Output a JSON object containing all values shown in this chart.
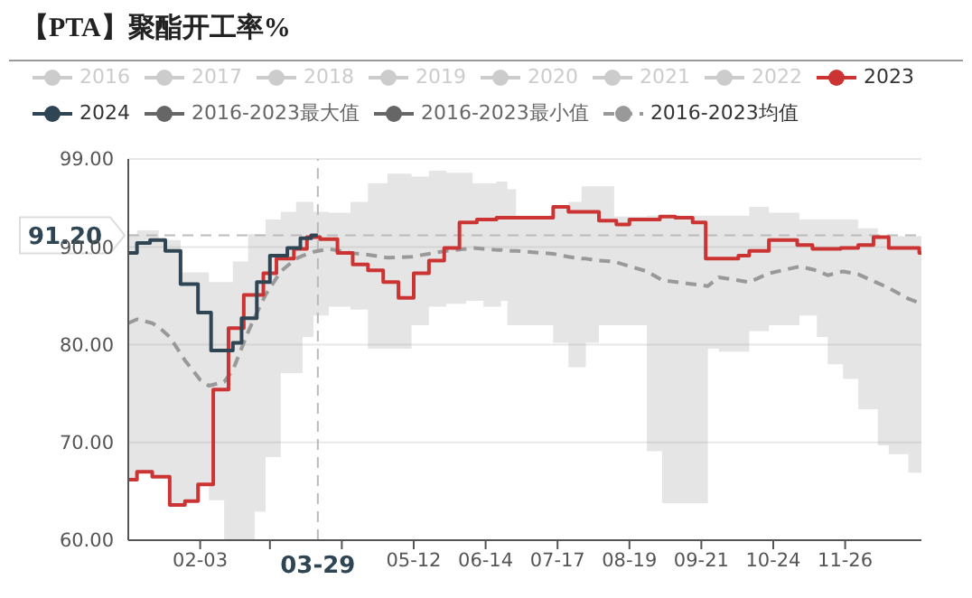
{
  "chart_data": {
    "type": "step",
    "title": "【PTA】聚酯开工率%",
    "xlim": [
      "--01-01",
      "--12-31"
    ],
    "xticks": [
      {
        "value": "--02-03",
        "label": "02-03"
      },
      {
        "value": "--03-07",
        "label": null
      },
      {
        "value": "--04-09",
        "label": null
      },
      {
        "value": "--05-12",
        "label": "05-12"
      },
      {
        "value": "--06-14",
        "label": "06-14"
      },
      {
        "value": "--07-17",
        "label": "07-17"
      },
      {
        "value": "--08-19",
        "label": "08-19"
      },
      {
        "value": "--09-21",
        "label": "09-21"
      },
      {
        "value": "--10-24",
        "label": "10-24"
      },
      {
        "value": "--11-26",
        "label": "11-26"
      }
    ],
    "ylim": [
      60,
      99
    ],
    "yticks": [
      {
        "value": 60,
        "label": "60.00"
      },
      {
        "value": 70,
        "label": "70.00"
      },
      {
        "value": 80,
        "label": "80.00"
      },
      {
        "value": 90,
        "label": "90.00"
      },
      {
        "value": 99,
        "label": "99.00"
      }
    ],
    "grid": "y",
    "legend": "top",
    "marker": "none",
    "ref_lines": [
      {
        "axis": "x",
        "value": "--03-29",
        "label": "03-29",
        "color": "#bbbbbb",
        "line_style": "dashed"
      },
      {
        "axis": "y",
        "value": 91.2,
        "label": "91.20",
        "color": "#bbbbbb",
        "line_style": "dashed"
      }
    ],
    "series": [
      {
        "name": "2016",
        "color": "#cccccc"
      },
      {
        "name": "2017",
        "color": "#cccccc"
      },
      {
        "name": "2018",
        "color": "#cccccc"
      },
      {
        "name": "2019",
        "color": "#cccccc"
      },
      {
        "name": "2020",
        "color": "#cccccc"
      },
      {
        "name": "2021",
        "color": "#cccccc"
      },
      {
        "name": "2022",
        "color": "#cccccc"
      },
      {
        "name": "2023",
        "color": "#cc3333",
        "x": [
          "--01-01",
          "--01-05",
          "--01-12",
          "--01-20",
          "--01-27",
          "--02-02",
          "--02-09",
          "--02-16",
          "--02-23",
          "--03-04",
          "--03-10",
          "--03-18",
          "--03-24",
          "--03-30",
          "--04-07",
          "--04-14",
          "--04-21",
          "--04-28",
          "--05-05",
          "--05-12",
          "--05-19",
          "--05-26",
          "--06-02",
          "--06-10",
          "--06-19",
          "--06-24",
          "--07-15",
          "--07-22",
          "--08-05",
          "--08-13",
          "--08-19",
          "--09-02",
          "--09-09",
          "--09-17",
          "--09-23",
          "--10-08",
          "--10-13",
          "--10-22",
          "--11-04",
          "--11-11",
          "--11-24",
          "--12-02",
          "--12-09",
          "--12-16",
          "--12-30",
          "--12-31"
        ],
        "values": [
          66.2,
          67.0,
          66.5,
          63.6,
          64.0,
          65.7,
          75.4,
          81.7,
          85.1,
          87.3,
          88.8,
          89.8,
          91.0,
          90.8,
          89.4,
          88.2,
          87.6,
          86.4,
          84.8,
          87.3,
          88.6,
          89.9,
          92.5,
          92.8,
          93.0,
          93.0,
          94.1,
          93.6,
          92.7,
          92.3,
          92.8,
          93.1,
          93.0,
          92.5,
          88.8,
          89.1,
          89.6,
          90.7,
          90.2,
          89.8,
          89.9,
          90.2,
          91.0,
          89.9,
          89.4,
          89.4
        ]
      },
      {
        "name": "2024",
        "color": "#2f4554",
        "x": [
          "--01-01",
          "--01-05",
          "--01-11",
          "--01-18",
          "--01-25",
          "--02-02",
          "--02-08",
          "--02-18",
          "--02-22",
          "--03-01",
          "--03-07",
          "--03-15",
          "--03-21",
          "--03-26",
          "--03-29"
        ],
        "values": [
          89.4,
          90.4,
          90.7,
          89.6,
          86.2,
          83.3,
          79.4,
          80.2,
          82.7,
          86.4,
          89.1,
          89.9,
          90.9,
          91.2,
          91.2
        ]
      },
      {
        "name": "2016-2023最大值",
        "color": "#666666"
      },
      {
        "name": "2016-2023最小值",
        "color": "#666666"
      },
      {
        "name": "2016-2023均值",
        "type": "line",
        "line_style": "dashed",
        "color": "#999999",
        "x": [
          "--01-01",
          "--01-05",
          "--01-12",
          "--01-15",
          "--01-20",
          "--01-25",
          "--01-27",
          "--02-03",
          "--02-07",
          "--02-14",
          "--02-18",
          "--02-25",
          "--02-28",
          "--03-05",
          "--03-12",
          "--03-19",
          "--03-22",
          "--03-27",
          "--04-03",
          "--04-13",
          "--04-21",
          "--04-30",
          "--05-11",
          "--05-19",
          "--05-27",
          "--06-05",
          "--06-08",
          "--06-13",
          "--06-19",
          "--06-21",
          "--06-24",
          "--06-28",
          "--07-15",
          "--07-22",
          "--07-28",
          "--07-30",
          "--08-05",
          "--08-12",
          "--08-27",
          "--09-03",
          "--09-24",
          "--09-29",
          "--10-13",
          "--10-22",
          "--11-05",
          "--11-13",
          "--11-18",
          "--11-25",
          "--12-02",
          "--12-11",
          "--12-16",
          "--12-25",
          "--12-31"
        ],
        "upper": [
          91.3,
          91.7,
          91.7,
          90.7,
          90.7,
          87.4,
          87.4,
          87.4,
          86.4,
          86.4,
          88.5,
          91.3,
          91.3,
          92.8,
          93.6,
          94.6,
          94.6,
          93.6,
          93.5,
          94.6,
          96.5,
          97.5,
          97.2,
          97.8,
          97.6,
          97.6,
          96.5,
          96.5,
          96.7,
          96.7,
          95.9,
          93.2,
          94.2,
          94.6,
          96.2,
          96.2,
          96.2,
          93.1,
          93.2,
          93.2,
          93.2,
          93.2,
          94.1,
          93.5,
          92.8,
          92.8,
          92.8,
          92.8,
          91.9,
          91.1,
          91.1,
          91.1,
          91.1
        ],
        "lower": [
          66.2,
          67.0,
          66.5,
          66.5,
          63.6,
          63.6,
          64.0,
          65.7,
          64.1,
          60.0,
          60.0,
          60.0,
          62.9,
          68.5,
          77.1,
          77.1,
          80.8,
          83.0,
          83.9,
          83.6,
          79.6,
          79.6,
          82.0,
          83.9,
          84.2,
          84.5,
          84.5,
          83.9,
          83.9,
          84.5,
          82.0,
          82.0,
          80.2,
          77.7,
          77.7,
          80.2,
          82.0,
          82.0,
          69.1,
          63.8,
          79.6,
          79.3,
          81.4,
          82.0,
          83.0,
          80.8,
          78.0,
          76.5,
          73.4,
          69.7,
          68.8,
          66.9,
          66.9
        ],
        "values": [
          82.2,
          82.6,
          82.2,
          81.8,
          80.8,
          79.1,
          78.4,
          76.4,
          75.8,
          76.2,
          77.4,
          81.3,
          82.8,
          85.1,
          87.5,
          88.8,
          89.1,
          89.5,
          89.8,
          89.4,
          89.2,
          88.9,
          89.0,
          89.3,
          89.6,
          89.8,
          89.9,
          89.8,
          89.7,
          89.7,
          89.6,
          89.6,
          89.3,
          89.0,
          88.8,
          88.8,
          88.6,
          88.5,
          87.5,
          86.6,
          86.0,
          86.9,
          86.4,
          87.3,
          88.0,
          87.6,
          87.1,
          87.5,
          87.2,
          86.3,
          85.8,
          84.7,
          84.2
        ]
      }
    ]
  }
}
